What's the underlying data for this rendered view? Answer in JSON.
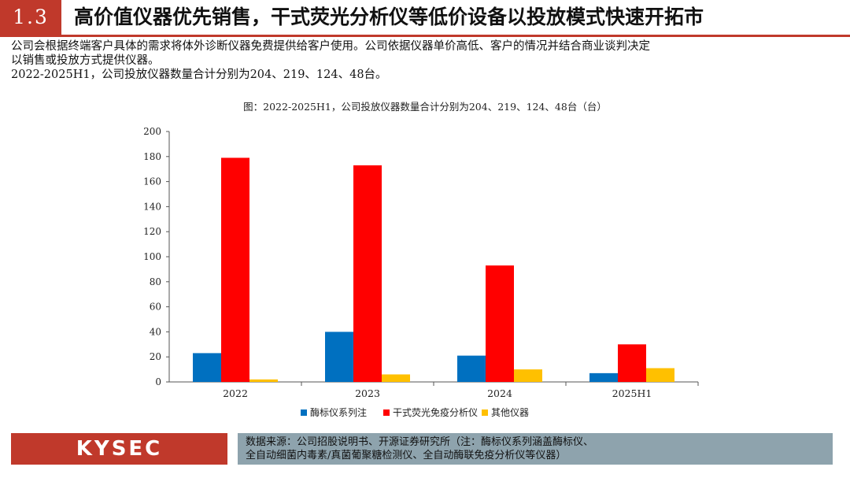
{
  "header": {
    "section_number": "1.3",
    "title": "高价值仪器优先销售，干式荧光分析仪等低价设备以投放模式快速开拓市"
  },
  "intro": {
    "line1": "公司会根据终端客户具体的需求将体外诊断仪器免费提供给客户使用。公司依据仪器单价高低、客户的情况并结合商业谈判决定",
    "line2": "以销售或投放方式提供仪器。",
    "line3": "2022-2025H1，公司投放仪器数量合计分别为204、219、124、48台。"
  },
  "chart_data": {
    "type": "bar",
    "title": "图：2022-2025H1，公司投放仪器数量合计分别为204、219、124、48台（台）",
    "categories": [
      "2022",
      "2023",
      "2024",
      "2025H1"
    ],
    "series": [
      {
        "name": "酶标仪系列注",
        "color": "#0070c0",
        "values": [
          23,
          40,
          21,
          7
        ]
      },
      {
        "name": "干式荧光免疫分析仪",
        "color": "#ff0000",
        "values": [
          179,
          173,
          93,
          30
        ]
      },
      {
        "name": "其他仪器",
        "color": "#ffc000",
        "values": [
          2,
          6,
          10,
          11
        ]
      }
    ],
    "ylim": [
      0,
      200
    ],
    "yticks": [
      0,
      20,
      40,
      60,
      80,
      100,
      120,
      140,
      160,
      180,
      200
    ],
    "grid": false,
    "legend_position": "bottom"
  },
  "footer": {
    "logo": "KYSEC",
    "source_line1": "数据来源：公司招股说明书、开源证券研究所（注：酶标仪系列涵盖酶标仪、",
    "source_line2": "全自动细菌内毒素/真菌葡聚糖检测仪、全自动酶联免疫分析仪等仪器）"
  }
}
